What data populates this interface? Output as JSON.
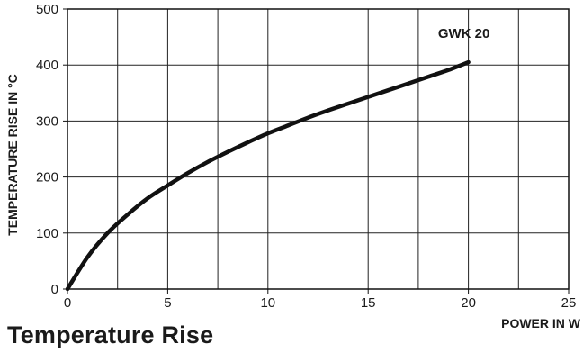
{
  "page": {
    "title": "Temperature Rise"
  },
  "chart_data": {
    "type": "line",
    "title": "",
    "xlabel": "POWER IN W",
    "ylabel": "TEMPERATURE RISE IN °C",
    "xlim": [
      0,
      25
    ],
    "ylim": [
      0,
      500
    ],
    "xticks": [
      0,
      5,
      10,
      15,
      20,
      25
    ],
    "yticks": [
      0,
      100,
      200,
      300,
      400,
      500
    ],
    "grid": true,
    "minor_x_gridlines": [
      2.5,
      7.5,
      12.5,
      17.5,
      22.5
    ],
    "series": [
      {
        "name": "GWK 20",
        "color": "#111111",
        "x": [
          0,
          1,
          2,
          3,
          4,
          5,
          6,
          7,
          8,
          9,
          10,
          11,
          12,
          13,
          14,
          15,
          16,
          17,
          18,
          19,
          20
        ],
        "y": [
          0,
          57,
          100,
          133,
          162,
          185,
          207,
          227,
          245,
          262,
          278,
          292,
          306,
          319,
          331,
          343,
          355,
          367,
          379,
          391,
          405
        ]
      }
    ]
  }
}
